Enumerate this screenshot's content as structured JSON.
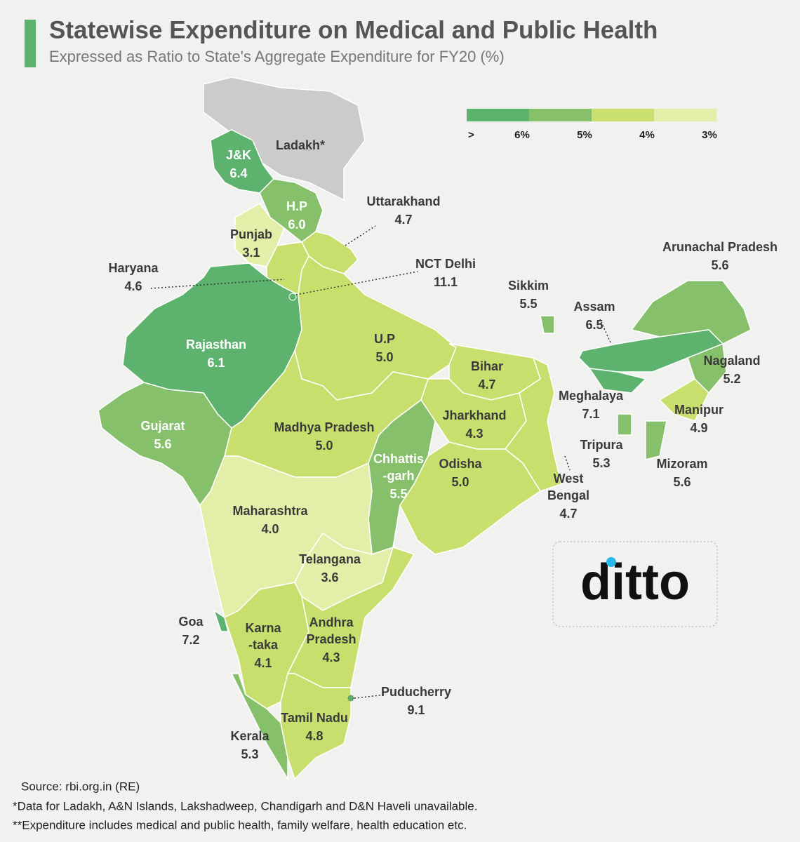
{
  "header": {
    "title": "Statewise Expenditure on Medical and Public Health",
    "subtitle": "Expressed as Ratio to State's Aggregate Expenditure for FY20 (%)"
  },
  "legend": {
    "colors": [
      "#5db26e",
      "#86c06a",
      "#c8df6e",
      "#e3eea8"
    ],
    "labels": [
      ">",
      "6%",
      "5%",
      "4%",
      "3%"
    ]
  },
  "regions": [
    {
      "name_lines": [
        "Ladakh*"
      ],
      "color": "#cbcbcb"
    },
    {
      "name_lines": [
        "J&K"
      ],
      "value": "6.4",
      "color": "#5db26e"
    },
    {
      "name_lines": [
        "H.P"
      ],
      "value": "6.0",
      "color": "#86c06a"
    },
    {
      "name_lines": [
        "Punjab"
      ],
      "value": "3.1",
      "color": "#e3eea8"
    },
    {
      "name_lines": [
        "Uttarakhand"
      ],
      "value": "4.7",
      "color": "#c8df6e"
    },
    {
      "name_lines": [
        "Haryana"
      ],
      "value": "4.6",
      "color": "#c8df6e"
    },
    {
      "name_lines": [
        "NCT Delhi"
      ],
      "value": "11.1",
      "color": "#5db26e"
    },
    {
      "name_lines": [
        "Rajasthan"
      ],
      "value": "6.1",
      "color": "#5db26e"
    },
    {
      "name_lines": [
        "U.P"
      ],
      "value": "5.0",
      "color": "#c8df6e"
    },
    {
      "name_lines": [
        "Bihar"
      ],
      "value": "4.7",
      "color": "#c8df6e"
    },
    {
      "name_lines": [
        "Jharkhand"
      ],
      "value": "4.3",
      "color": "#c8df6e"
    },
    {
      "name_lines": [
        "West",
        "Bengal"
      ],
      "value": "4.7",
      "color": "#c8df6e"
    },
    {
      "name_lines": [
        "Gujarat"
      ],
      "value": "5.6",
      "color": "#86c06a"
    },
    {
      "name_lines": [
        "Madhya Pradesh"
      ],
      "value": "5.0",
      "color": "#c8df6e"
    },
    {
      "name_lines": [
        "Chhattis",
        "-garh"
      ],
      "value": "5.5",
      "color": "#86c06a"
    },
    {
      "name_lines": [
        "Odisha"
      ],
      "value": "5.0",
      "color": "#c8df6e"
    },
    {
      "name_lines": [
        "Maharashtra"
      ],
      "value": "4.0",
      "color": "#e3eea8"
    },
    {
      "name_lines": [
        "Telangana"
      ],
      "value": "3.6",
      "color": "#e3eea8"
    },
    {
      "name_lines": [
        "Goa"
      ],
      "value": "7.2",
      "color": "#5db26e"
    },
    {
      "name_lines": [
        "Karna",
        "-taka"
      ],
      "value": "4.1",
      "color": "#c8df6e"
    },
    {
      "name_lines": [
        "Andhra",
        "Pradesh"
      ],
      "value": "4.3",
      "color": "#c8df6e"
    },
    {
      "name_lines": [
        "Kerala"
      ],
      "value": "5.3",
      "color": "#86c06a"
    },
    {
      "name_lines": [
        "Tamil Nadu"
      ],
      "value": "4.8",
      "color": "#c8df6e"
    },
    {
      "name_lines": [
        "Puducherry"
      ],
      "value": "9.1",
      "color": "#5db26e"
    },
    {
      "name_lines": [
        "Sikkim"
      ],
      "value": "5.5",
      "color": "#86c06a"
    },
    {
      "name_lines": [
        "Arunachal Pradesh"
      ],
      "value": "5.6",
      "color": "#86c06a"
    },
    {
      "name_lines": [
        "Assam"
      ],
      "value": "6.5",
      "color": "#5db26e"
    },
    {
      "name_lines": [
        "Nagaland"
      ],
      "value": "5.2",
      "color": "#86c06a"
    },
    {
      "name_lines": [
        "Meghalaya"
      ],
      "value": "7.1",
      "color": "#5db26e"
    },
    {
      "name_lines": [
        "Manipur"
      ],
      "value": "4.9",
      "color": "#c8df6e"
    },
    {
      "name_lines": [
        "Tripura"
      ],
      "value": "5.3",
      "color": "#86c06a"
    },
    {
      "name_lines": [
        "Mizoram"
      ],
      "value": "5.6",
      "color": "#86c06a"
    }
  ],
  "logo": "ditto",
  "footer": {
    "source": "Source: rbi.org.in (RE)",
    "notes": [
      "*Data for Ladakh, A&N Islands, Lakshadweep, Chandigarh and D&N Haveli unavailable.",
      "**Expenditure includes medical and public health, family welfare, health education etc."
    ]
  }
}
